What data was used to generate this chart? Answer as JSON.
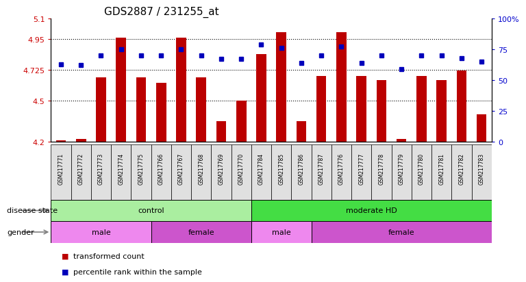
{
  "title": "GDS2887 / 231255_at",
  "samples": [
    "GSM217771",
    "GSM217772",
    "GSM217773",
    "GSM217774",
    "GSM217775",
    "GSM217766",
    "GSM217767",
    "GSM217768",
    "GSM217769",
    "GSM217770",
    "GSM217784",
    "GSM217785",
    "GSM217786",
    "GSM217787",
    "GSM217776",
    "GSM217777",
    "GSM217778",
    "GSM217779",
    "GSM217780",
    "GSM217781",
    "GSM217782",
    "GSM217783"
  ],
  "bar_values": [
    4.21,
    4.22,
    4.67,
    4.96,
    4.67,
    4.63,
    4.96,
    4.67,
    4.35,
    4.5,
    4.84,
    5.0,
    4.35,
    4.68,
    5.0,
    4.68,
    4.65,
    4.22,
    4.68,
    4.65,
    4.72,
    4.4
  ],
  "dot_percentiles": [
    63,
    62,
    70,
    75,
    70,
    70,
    75,
    70,
    67,
    67,
    79,
    76,
    64,
    70,
    77,
    64,
    70,
    59,
    70,
    70,
    68,
    65
  ],
  "ylim_left": [
    4.2,
    5.1
  ],
  "ylim_right": [
    0,
    100
  ],
  "yticks_left": [
    4.2,
    4.5,
    4.725,
    4.95,
    5.1
  ],
  "ytick_labels_left": [
    "4.2",
    "4.5",
    "4.725",
    "4.95",
    "5.1"
  ],
  "yticks_right": [
    0,
    25,
    50,
    75,
    100
  ],
  "ytick_labels_right": [
    "0",
    "25",
    "50",
    "75",
    "100%"
  ],
  "hlines": [
    4.5,
    4.725,
    4.95
  ],
  "bar_color": "#bb0000",
  "dot_color": "#0000bb",
  "disease_groups": [
    {
      "label": "control",
      "start": 0,
      "end": 10,
      "color": "#aaeea0"
    },
    {
      "label": "moderate HD",
      "start": 10,
      "end": 22,
      "color": "#44dd44"
    }
  ],
  "gender_groups": [
    {
      "label": "male",
      "start": 0,
      "end": 5,
      "color": "#ee88ee"
    },
    {
      "label": "female",
      "start": 5,
      "end": 10,
      "color": "#cc55cc"
    },
    {
      "label": "male",
      "start": 10,
      "end": 13,
      "color": "#ee88ee"
    },
    {
      "label": "female",
      "start": 13,
      "end": 22,
      "color": "#cc55cc"
    }
  ],
  "legend_items": [
    {
      "label": "transformed count",
      "color": "#bb0000"
    },
    {
      "label": "percentile rank within the sample",
      "color": "#0000bb"
    }
  ],
  "bg_color": "#ffffff",
  "bar_width": 0.5,
  "title_fontsize": 11,
  "left_axis_color": "#cc0000",
  "right_axis_color": "#0000cc"
}
